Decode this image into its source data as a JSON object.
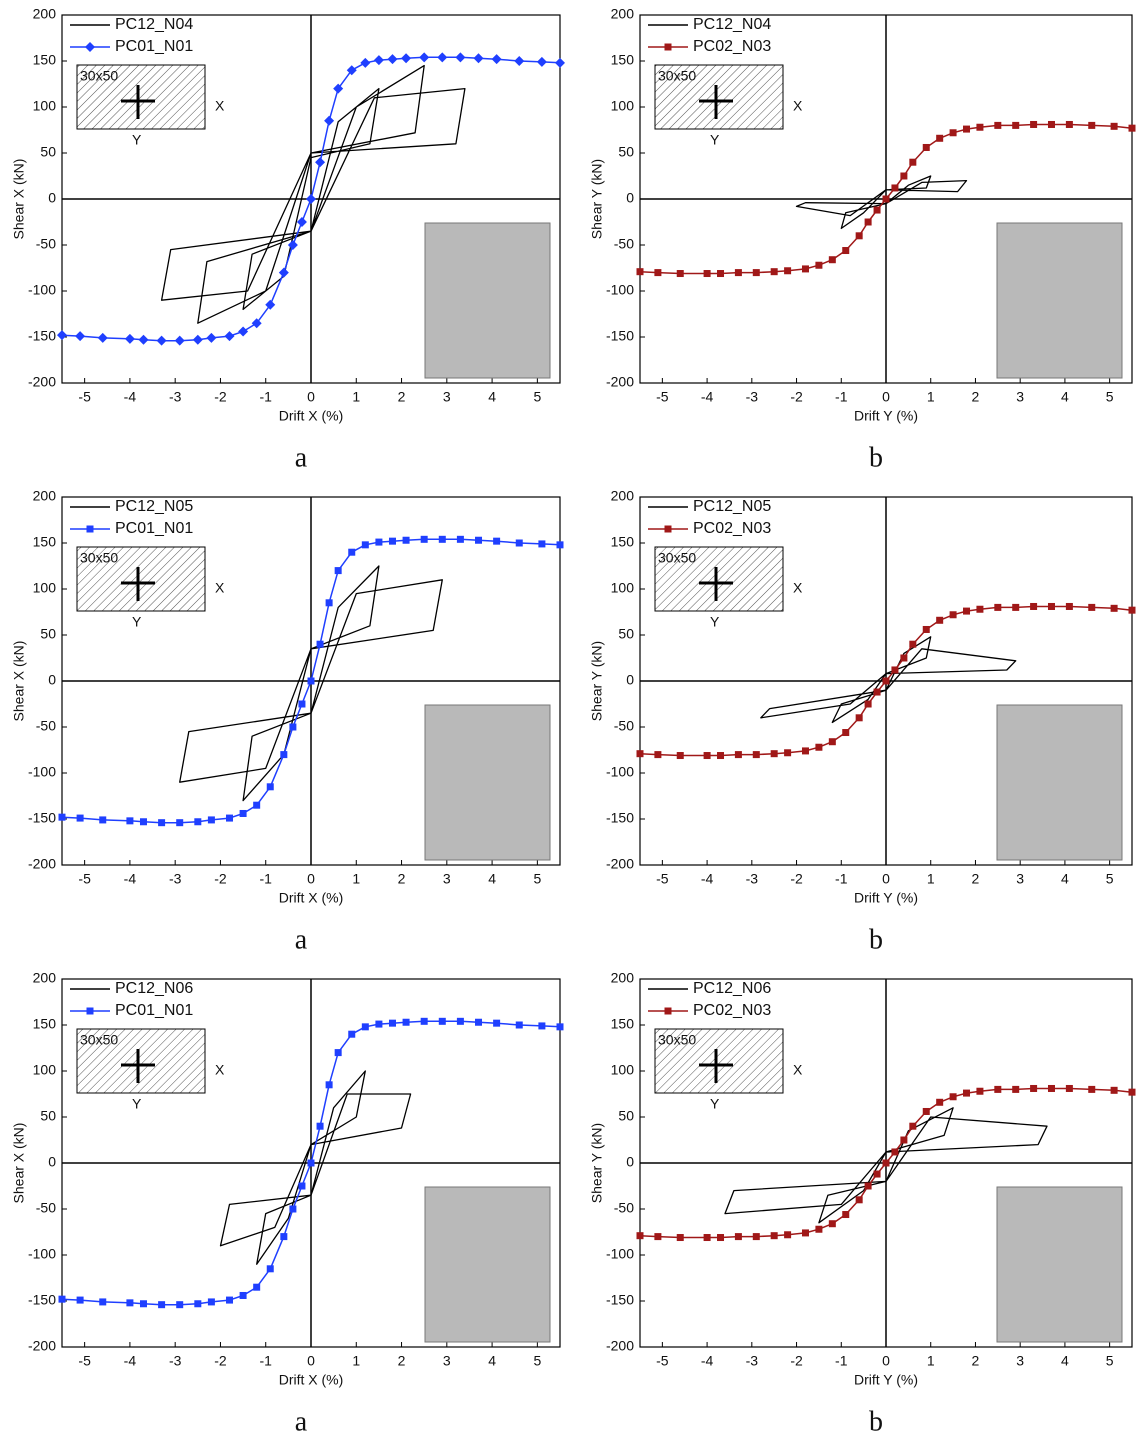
{
  "chart_data": [
    {
      "type": "line",
      "xlabel": "Drift X (%)",
      "ylabel": "Shear X (kN)",
      "caption": "a",
      "inset_label": "30x50",
      "inset_axes": [
        "X",
        "Y"
      ],
      "marker": "diamond",
      "xlim": [
        -5.5,
        5.5
      ],
      "ylim": [
        -200,
        200
      ],
      "xticks": [
        -5,
        -4,
        -3,
        -2,
        -1,
        0,
        1,
        2,
        3,
        4,
        5
      ],
      "yticks": [
        -200,
        -150,
        -100,
        -50,
        0,
        50,
        100,
        150,
        200
      ],
      "series": [
        {
          "name": "PC12_N04",
          "color": "#000000",
          "x": [
            0,
            0.6,
            1.5,
            1.3,
            0,
            -0.6,
            -1.5,
            -1.3,
            0,
            1.0,
            2.5,
            2.3,
            0,
            -1.0,
            -2.5,
            -2.3,
            0,
            1.4,
            3.4,
            3.2,
            0,
            -1.4,
            -3.3,
            -3.1,
            0
          ],
          "values": [
            -35,
            84,
            120,
            60,
            45,
            -84,
            -120,
            -60,
            -35,
            100,
            145,
            72,
            50,
            -100,
            -135,
            -68,
            -35,
            110,
            120,
            60,
            50,
            -100,
            -110,
            -55,
            -35
          ]
        },
        {
          "name": "PC01_N01",
          "color": "#1f3fff",
          "x": [
            -5.5,
            -5.1,
            -4.6,
            -4.0,
            -3.7,
            -3.3,
            -2.9,
            -2.5,
            -2.2,
            -1.8,
            -1.5,
            -1.2,
            -0.9,
            -0.6,
            -0.4,
            -0.2,
            0,
            0.2,
            0.4,
            0.6,
            0.9,
            1.2,
            1.5,
            1.8,
            2.1,
            2.5,
            2.9,
            3.3,
            3.7,
            4.1,
            4.6,
            5.1,
            5.5
          ],
          "values": [
            -148,
            -149,
            -151,
            -152,
            -153,
            -154,
            -154,
            -153,
            -151,
            -149,
            -144,
            -135,
            -115,
            -80,
            -50,
            -25,
            0,
            40,
            85,
            120,
            140,
            148,
            151,
            152,
            153,
            154,
            154,
            154,
            153,
            152,
            150,
            149,
            148
          ]
        }
      ]
    },
    {
      "type": "line",
      "xlabel": "Drift Y (%)",
      "ylabel": "Shear Y (kN)",
      "caption": "b",
      "inset_label": "30x50",
      "inset_axes": [
        "X",
        "Y"
      ],
      "marker": "square",
      "xlim": [
        -5.5,
        5.5
      ],
      "ylim": [
        -200,
        200
      ],
      "xticks": [
        -5,
        -4,
        -3,
        -2,
        -1,
        0,
        1,
        2,
        3,
        4,
        5
      ],
      "yticks": [
        -200,
        -150,
        -100,
        -50,
        0,
        50,
        100,
        150,
        200
      ],
      "series": [
        {
          "name": "PC12_N04",
          "color": "#000000",
          "x": [
            0,
            0.5,
            1.0,
            0.9,
            0,
            -0.5,
            -1.0,
            -0.9,
            0,
            0.8,
            1.8,
            1.6,
            0,
            -0.8,
            -2.0,
            -1.8,
            0
          ],
          "values": [
            -5,
            15,
            25,
            12,
            10,
            -15,
            -32,
            -15,
            -5,
            18,
            20,
            8,
            10,
            -18,
            -8,
            -4,
            -5
          ]
        },
        {
          "name": "PC02_N03",
          "color": "#a01818",
          "x": [
            -5.5,
            -5.1,
            -4.6,
            -4.0,
            -3.7,
            -3.3,
            -2.9,
            -2.5,
            -2.2,
            -1.8,
            -1.5,
            -1.2,
            -0.9,
            -0.6,
            -0.4,
            -0.2,
            0,
            0.2,
            0.4,
            0.6,
            0.9,
            1.2,
            1.5,
            1.8,
            2.1,
            2.5,
            2.9,
            3.3,
            3.7,
            4.1,
            4.6,
            5.1,
            5.5
          ],
          "values": [
            -79,
            -80,
            -81,
            -81,
            -81,
            -80,
            -80,
            -79,
            -78,
            -76,
            -72,
            -66,
            -56,
            -40,
            -25,
            -12,
            0,
            12,
            25,
            40,
            56,
            66,
            72,
            76,
            78,
            80,
            80,
            81,
            81,
            81,
            80,
            79,
            77
          ]
        }
      ]
    },
    {
      "type": "line",
      "xlabel": "Drift X (%)",
      "ylabel": "Shear X (kN)",
      "caption": "a",
      "inset_label": "30x50",
      "inset_axes": [
        "X",
        "Y"
      ],
      "marker": "square",
      "xlim": [
        -5.5,
        5.5
      ],
      "ylim": [
        -200,
        200
      ],
      "xticks": [
        -5,
        -4,
        -3,
        -2,
        -1,
        0,
        1,
        2,
        3,
        4,
        5
      ],
      "yticks": [
        -200,
        -150,
        -100,
        -50,
        0,
        50,
        100,
        150,
        200
      ],
      "series": [
        {
          "name": "PC12_N05",
          "color": "#000000",
          "x": [
            0,
            0.6,
            1.5,
            1.3,
            0,
            -0.6,
            -1.5,
            -1.3,
            0,
            1.0,
            2.9,
            2.7,
            0,
            -1.0,
            -2.9,
            -2.7,
            0
          ],
          "values": [
            -35,
            80,
            125,
            60,
            35,
            -80,
            -130,
            -60,
            -35,
            95,
            110,
            55,
            35,
            -95,
            -110,
            -55,
            -35
          ]
        },
        {
          "name": "PC01_N01",
          "color": "#1f3fff",
          "x": [
            -5.5,
            -5.1,
            -4.6,
            -4.0,
            -3.7,
            -3.3,
            -2.9,
            -2.5,
            -2.2,
            -1.8,
            -1.5,
            -1.2,
            -0.9,
            -0.6,
            -0.4,
            -0.2,
            0,
            0.2,
            0.4,
            0.6,
            0.9,
            1.2,
            1.5,
            1.8,
            2.1,
            2.5,
            2.9,
            3.3,
            3.7,
            4.1,
            4.6,
            5.1,
            5.5
          ],
          "values": [
            -148,
            -149,
            -151,
            -152,
            -153,
            -154,
            -154,
            -153,
            -151,
            -149,
            -144,
            -135,
            -115,
            -80,
            -50,
            -25,
            0,
            40,
            85,
            120,
            140,
            148,
            151,
            152,
            153,
            154,
            154,
            154,
            153,
            152,
            150,
            149,
            148
          ]
        }
      ]
    },
    {
      "type": "line",
      "xlabel": "Drift Y (%)",
      "ylabel": "Shear Y (kN)",
      "caption": "b",
      "inset_label": "30x50",
      "inset_axes": [
        "X",
        "Y"
      ],
      "marker": "square",
      "xlim": [
        -5.5,
        5.5
      ],
      "ylim": [
        -200,
        200
      ],
      "xticks": [
        -5,
        -4,
        -3,
        -2,
        -1,
        0,
        1,
        2,
        3,
        4,
        5
      ],
      "yticks": [
        -200,
        -150,
        -100,
        -50,
        0,
        50,
        100,
        150,
        200
      ],
      "series": [
        {
          "name": "PC12_N05",
          "color": "#000000",
          "x": [
            0,
            0.4,
            1.0,
            0.9,
            0,
            -0.4,
            -1.2,
            -1.0,
            0,
            0.8,
            2.9,
            2.7,
            0,
            -0.8,
            -2.8,
            -2.6,
            0
          ],
          "values": [
            -10,
            30,
            48,
            25,
            8,
            -20,
            -45,
            -25,
            -10,
            35,
            22,
            12,
            8,
            -25,
            -40,
            -30,
            -10
          ]
        },
        {
          "name": "PC02_N03",
          "color": "#a01818",
          "x": [
            -5.5,
            -5.1,
            -4.6,
            -4.0,
            -3.7,
            -3.3,
            -2.9,
            -2.5,
            -2.2,
            -1.8,
            -1.5,
            -1.2,
            -0.9,
            -0.6,
            -0.4,
            -0.2,
            0,
            0.2,
            0.4,
            0.6,
            0.9,
            1.2,
            1.5,
            1.8,
            2.1,
            2.5,
            2.9,
            3.3,
            3.7,
            4.1,
            4.6,
            5.1,
            5.5
          ],
          "values": [
            -79,
            -80,
            -81,
            -81,
            -81,
            -80,
            -80,
            -79,
            -78,
            -76,
            -72,
            -66,
            -56,
            -40,
            -25,
            -12,
            0,
            12,
            25,
            40,
            56,
            66,
            72,
            76,
            78,
            80,
            80,
            81,
            81,
            81,
            80,
            79,
            77
          ]
        }
      ]
    },
    {
      "type": "line",
      "xlabel": "Drift X (%)",
      "ylabel": "Shear X (kN)",
      "caption": "a",
      "inset_label": "30x50",
      "inset_axes": [
        "X",
        "Y"
      ],
      "marker": "square",
      "xlim": [
        -5.5,
        5.5
      ],
      "ylim": [
        -200,
        200
      ],
      "xticks": [
        -5,
        -4,
        -3,
        -2,
        -1,
        0,
        1,
        2,
        3,
        4,
        5
      ],
      "yticks": [
        -200,
        -150,
        -100,
        -50,
        0,
        50,
        100,
        150,
        200
      ],
      "series": [
        {
          "name": "PC12_N06",
          "color": "#000000",
          "x": [
            0,
            0.5,
            1.2,
            1.0,
            0,
            -0.5,
            -1.2,
            -1.0,
            0,
            0.8,
            2.2,
            2.0,
            0,
            -0.8,
            -2.0,
            -1.8,
            0
          ],
          "values": [
            -35,
            60,
            100,
            50,
            20,
            -60,
            -110,
            -55,
            -35,
            75,
            75,
            38,
            20,
            -70,
            -90,
            -45,
            -35
          ]
        },
        {
          "name": "PC01_N01",
          "color": "#1f3fff",
          "x": [
            -5.5,
            -5.1,
            -4.6,
            -4.0,
            -3.7,
            -3.3,
            -2.9,
            -2.5,
            -2.2,
            -1.8,
            -1.5,
            -1.2,
            -0.9,
            -0.6,
            -0.4,
            -0.2,
            0,
            0.2,
            0.4,
            0.6,
            0.9,
            1.2,
            1.5,
            1.8,
            2.1,
            2.5,
            2.9,
            3.3,
            3.7,
            4.1,
            4.6,
            5.1,
            5.5
          ],
          "values": [
            -148,
            -149,
            -151,
            -152,
            -153,
            -154,
            -154,
            -153,
            -151,
            -149,
            -144,
            -135,
            -115,
            -80,
            -50,
            -25,
            0,
            40,
            85,
            120,
            140,
            148,
            151,
            152,
            153,
            154,
            154,
            154,
            153,
            152,
            150,
            149,
            148
          ]
        }
      ]
    },
    {
      "type": "line",
      "xlabel": "Drift Y (%)",
      "ylabel": "Shear Y (kN)",
      "caption": "b",
      "inset_label": "30x50",
      "inset_axes": [
        "X",
        "Y"
      ],
      "marker": "square",
      "xlim": [
        -5.5,
        5.5
      ],
      "ylim": [
        -200,
        200
      ],
      "xticks": [
        -5,
        -4,
        -3,
        -2,
        -1,
        0,
        1,
        2,
        3,
        4,
        5
      ],
      "yticks": [
        -200,
        -150,
        -100,
        -50,
        0,
        50,
        100,
        150,
        200
      ],
      "series": [
        {
          "name": "PC12_N06",
          "color": "#000000",
          "x": [
            0,
            0.5,
            1.5,
            1.3,
            0,
            -0.5,
            -1.5,
            -1.3,
            0,
            1.0,
            3.6,
            3.4,
            0,
            -1.0,
            -3.6,
            -3.4,
            0
          ],
          "values": [
            -20,
            35,
            60,
            30,
            12,
            -30,
            -65,
            -35,
            -20,
            50,
            40,
            20,
            12,
            -45,
            -55,
            -30,
            -20
          ]
        },
        {
          "name": "PC02_N03",
          "color": "#a01818",
          "x": [
            -5.5,
            -5.1,
            -4.6,
            -4.0,
            -3.7,
            -3.3,
            -2.9,
            -2.5,
            -2.2,
            -1.8,
            -1.5,
            -1.2,
            -0.9,
            -0.6,
            -0.4,
            -0.2,
            0,
            0.2,
            0.4,
            0.6,
            0.9,
            1.2,
            1.5,
            1.8,
            2.1,
            2.5,
            2.9,
            3.3,
            3.7,
            4.1,
            4.6,
            5.1,
            5.5
          ],
          "values": [
            -79,
            -80,
            -81,
            -81,
            -81,
            -80,
            -80,
            -79,
            -78,
            -76,
            -72,
            -66,
            -56,
            -40,
            -25,
            -12,
            0,
            12,
            25,
            40,
            56,
            66,
            72,
            76,
            78,
            80,
            80,
            81,
            81,
            81,
            80,
            79,
            77
          ]
        }
      ]
    }
  ]
}
